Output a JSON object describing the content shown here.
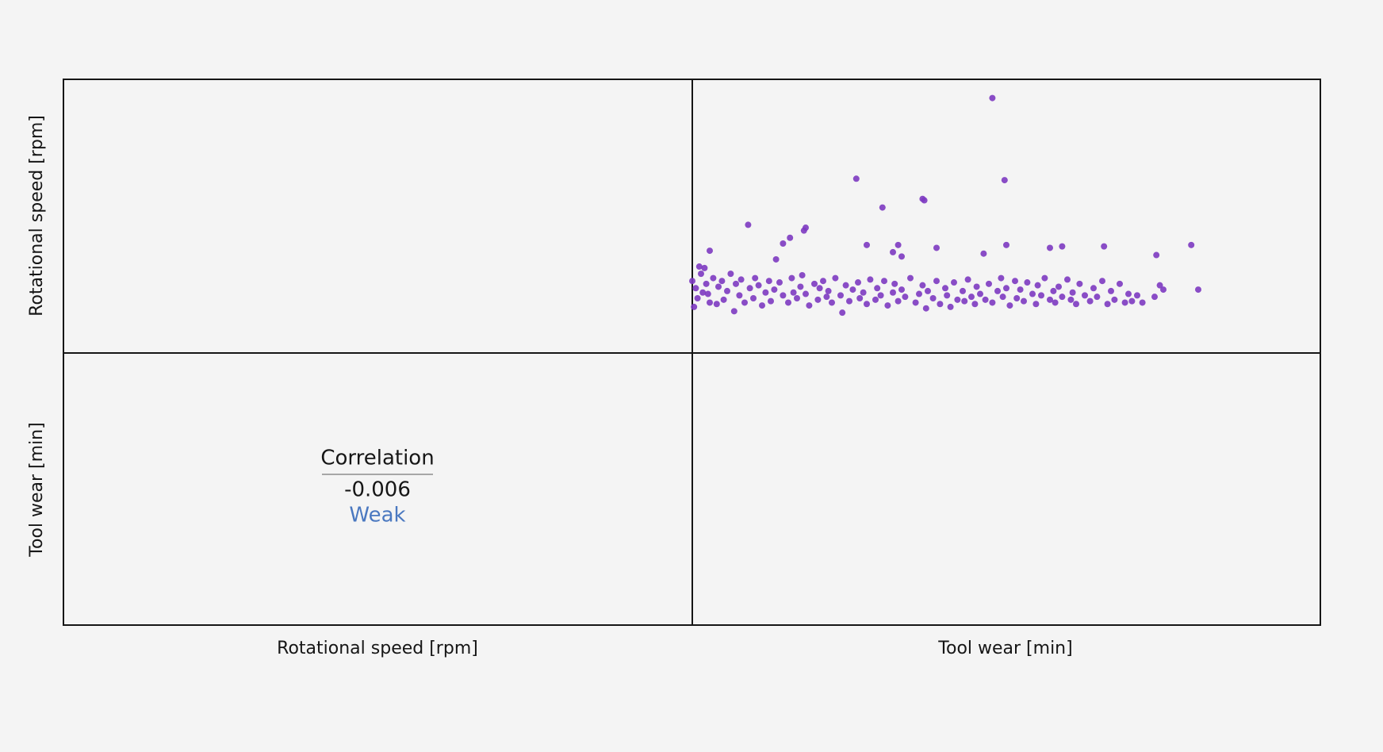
{
  "chart_data": {
    "type": "scatter",
    "row_labels": [
      "Rotational speed [rpm]",
      "Tool wear [min]"
    ],
    "col_labels": [
      "Rotational speed [rpm]",
      "Tool wear [min]"
    ],
    "correlation": {
      "title": "Correlation",
      "value": -0.006,
      "strength": "Weak"
    },
    "color": "#7d3ac1",
    "xlim": [
      0,
      360
    ],
    "ylim": [
      1100,
      3000
    ],
    "x": [
      0,
      2,
      3,
      5,
      4,
      1,
      6,
      8,
      10,
      12,
      9,
      7,
      14,
      15,
      17,
      18,
      20,
      22,
      24,
      25,
      27,
      28,
      30,
      33,
      35,
      36,
      38,
      40,
      42,
      44,
      45,
      47,
      50,
      52,
      55,
      57,
      58,
      60,
      62,
      63,
      65,
      67,
      70,
      72,
      73,
      75,
      77,
      78,
      80,
      82,
      85,
      86,
      88,
      90,
      92,
      95,
      96,
      98,
      100,
      102,
      105,
      106,
      108,
      110,
      112,
      115,
      116,
      118,
      120,
      122,
      125,
      128,
      130,
      132,
      134,
      135,
      138,
      140,
      142,
      145,
      146,
      148,
      150,
      152,
      155,
      156,
      158,
      160,
      162,
      163,
      165,
      168,
      170,
      172,
      175,
      177,
      178,
      180,
      182,
      185,
      186,
      188,
      190,
      192,
      195,
      197,
      198,
      200,
      202,
      205,
      207,
      208,
      210,
      212,
      215,
      217,
      218,
      220,
      222,
      225,
      228,
      230,
      232,
      235,
      238,
      240,
      242,
      245,
      248,
      250,
      252,
      255,
      258,
      265,
      268,
      270,
      290,
      172,
      179,
      94,
      132,
      133,
      109,
      32,
      65,
      64,
      100,
      10,
      140,
      118,
      56,
      52,
      286,
      236,
      180,
      167,
      115,
      120,
      205,
      266,
      212,
      48
    ],
    "y": [
      1600,
      1550,
      1480,
      1650,
      1700,
      1420,
      1520,
      1580,
      1450,
      1620,
      1510,
      1690,
      1440,
      1560,
      1600,
      1470,
      1530,
      1650,
      1390,
      1580,
      1500,
      1610,
      1450,
      1550,
      1480,
      1620,
      1570,
      1430,
      1520,
      1600,
      1460,
      1540,
      1590,
      1500,
      1450,
      1620,
      1520,
      1480,
      1560,
      1640,
      1510,
      1430,
      1580,
      1470,
      1550,
      1600,
      1490,
      1530,
      1450,
      1620,
      1500,
      1380,
      1570,
      1460,
      1540,
      1590,
      1480,
      1520,
      1440,
      1610,
      1470,
      1550,
      1500,
      1600,
      1430,
      1520,
      1580,
      1460,
      1540,
      1490,
      1620,
      1450,
      1510,
      1570,
      1410,
      1530,
      1480,
      1600,
      1440,
      1550,
      1500,
      1420,
      1590,
      1470,
      1530,
      1460,
      1610,
      1490,
      1440,
      1560,
      1510,
      1470,
      1580,
      1450,
      1530,
      1620,
      1490,
      1550,
      1430,
      1600,
      1480,
      1540,
      1460,
      1590,
      1510,
      1440,
      1570,
      1500,
      1620,
      1470,
      1530,
      1450,
      1560,
      1490,
      1610,
      1470,
      1520,
      1440,
      1580,
      1500,
      1460,
      1550,
      1490,
      1600,
      1440,
      1530,
      1470,
      1580,
      1450,
      1510,
      1460,
      1500,
      1450,
      1490,
      1570,
      1540,
      1540,
      2870,
      2300,
      2310,
      2170,
      2160,
      2110,
      1990,
      1970,
      1950,
      1850,
      1810,
      1830,
      1850,
      1900,
      1860,
      1850,
      1840,
      1850,
      1790,
      1800,
      1770,
      1830,
      1780,
      1840,
      1750
    ]
  }
}
